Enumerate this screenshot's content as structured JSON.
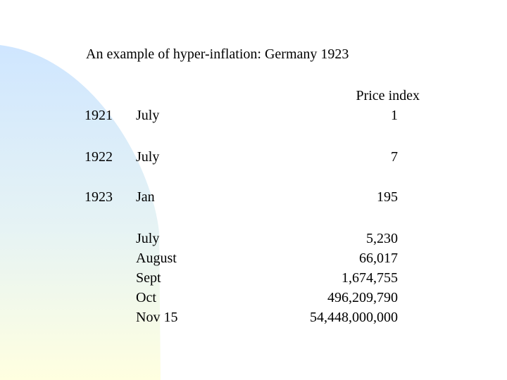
{
  "title": "An example of hyper-inflation: Germany 1923",
  "column_header": "Price index",
  "colors": {
    "background": "#ffffff",
    "gradient_top": "#cfe6ff",
    "gradient_bottom": "#ffffe0"
  },
  "rows": [
    {
      "year": "1921",
      "month": "July",
      "value": "1"
    },
    {
      "year": "1922",
      "month": "July",
      "value": "7"
    },
    {
      "year": "1923",
      "month": "Jan",
      "value": "195"
    }
  ],
  "rows_1923": [
    {
      "month": "July",
      "value": "5,230"
    },
    {
      "month": "August",
      "value": "66,017"
    },
    {
      "month": "Sept",
      "value": "1,674,755"
    },
    {
      "month": "Oct",
      "value": "496,209,790"
    },
    {
      "month": "Nov 15",
      "value": "54,448,000,000"
    }
  ]
}
